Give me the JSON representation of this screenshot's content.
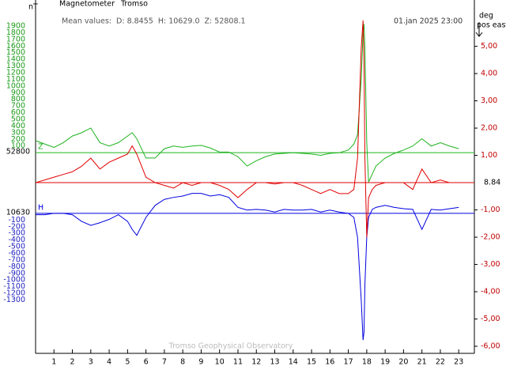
{
  "chart_data": {
    "type": "line",
    "header": {
      "unit_left": "nT",
      "instrument": "Magnetometer",
      "station": "Tromso",
      "mean_values": "Mean values:  D: 8.8455  H: 10629.0  Z: 52808.1",
      "timestamp": "01.jan 2025 23:00",
      "unit_right": "deg",
      "unit_right_sub": "pos east",
      "footer": "Tromso Geophysical Observatory"
    },
    "x": [
      0,
      0.5,
      1,
      1.5,
      2,
      2.5,
      3,
      3.5,
      4,
      4.5,
      5,
      5.25,
      5.5,
      6,
      6.5,
      7,
      7.5,
      8,
      8.5,
      9,
      9.5,
      10,
      10.5,
      11,
      11.5,
      12,
      12.5,
      13,
      13.5,
      14,
      14.5,
      15,
      15.5,
      16,
      16.5,
      17,
      17.3,
      17.5,
      17.7,
      17.8,
      17.85,
      17.9,
      18,
      18.1,
      18.3,
      18.5,
      19,
      19.5,
      20,
      20.5,
      21,
      21.5,
      22,
      22.5,
      23
    ],
    "xlim": [
      0,
      23.85
    ],
    "xticks": [
      1,
      2,
      3,
      4,
      5,
      6,
      7,
      8,
      9,
      10,
      11,
      12,
      13,
      14,
      15,
      16,
      17,
      18,
      19,
      20,
      21,
      22,
      23
    ],
    "axes": {
      "z": {
        "ylim": [
          -3010,
          2030
        ],
        "yticks": [
          1900,
          1800,
          1700,
          1600,
          1500,
          1400,
          1300,
          1200,
          1100,
          1000,
          900,
          800,
          700,
          600,
          500,
          400,
          300,
          200,
          100
        ],
        "color": "#1a9a1a",
        "baseline_label": "52800"
      },
      "h": {
        "ylim": [
          -2100,
          2940
        ],
        "yticks": [
          -100,
          -200,
          -300,
          -400,
          -500,
          -600,
          -700,
          -800,
          -900,
          -1000,
          -1100,
          -1200,
          -1300
        ],
        "color": "#2020c0",
        "baseline_label": "10630"
      },
      "d": {
        "ylim": [
          -6.26,
          6.06
        ],
        "yticks": [
          {
            "value": 5,
            "label": "5,00"
          },
          {
            "value": 4,
            "label": "4,00"
          },
          {
            "value": 3,
            "label": "3,00"
          },
          {
            "value": 2,
            "label": "2,00"
          },
          {
            "value": 1,
            "label": "1,00"
          },
          {
            "value": -1,
            "label": "-1,00"
          },
          {
            "value": -2,
            "label": "-2,00"
          },
          {
            "value": -3,
            "label": "-3,00"
          },
          {
            "value": -4,
            "label": "-4,00"
          },
          {
            "value": -5,
            "label": "-5,00"
          },
          {
            "value": -6,
            "label": "-6,00"
          }
        ],
        "color": "#c00000",
        "baseline_label": "8.84"
      }
    },
    "series": [
      {
        "name": "Z",
        "axis": "z",
        "color": "#1db31d",
        "values": [
          180,
          130,
          80,
          150,
          250,
          300,
          370,
          150,
          100,
          150,
          250,
          300,
          210,
          -80,
          -80,
          60,
          100,
          80,
          100,
          110,
          70,
          10,
          10,
          -60,
          -200,
          -120,
          -60,
          -20,
          -10,
          0,
          -10,
          -20,
          -40,
          -10,
          0,
          40,
          130,
          270,
          1100,
          1810,
          1930,
          1580,
          150,
          -440,
          -320,
          -200,
          -80,
          -10,
          40,
          100,
          210,
          100,
          150,
          100,
          60
        ]
      },
      {
        "name": "H",
        "axis": "h",
        "color": "#0000e0",
        "values": [
          -20,
          -20,
          0,
          0,
          -20,
          -120,
          -180,
          -140,
          -90,
          -20,
          -120,
          -240,
          -330,
          -60,
          120,
          210,
          240,
          260,
          300,
          300,
          260,
          280,
          240,
          90,
          50,
          60,
          50,
          20,
          60,
          50,
          50,
          60,
          20,
          50,
          20,
          0,
          -60,
          -360,
          -1300,
          -1900,
          -1780,
          -1070,
          -360,
          -60,
          60,
          90,
          120,
          90,
          70,
          60,
          -240,
          60,
          50,
          70,
          90
        ]
      },
      {
        "axis": "d",
        "color": "#e00000",
        "values": [
          0,
          0.1,
          0.2,
          0.3,
          0.4,
          0.6,
          0.9,
          0.5,
          0.75,
          0.9,
          1.05,
          1.35,
          1.05,
          0.2,
          0,
          -0.1,
          -0.2,
          0,
          -0.1,
          0,
          0,
          -0.1,
          -0.25,
          -0.55,
          -0.25,
          0,
          0,
          -0.05,
          0,
          0,
          -0.1,
          -0.25,
          -0.4,
          -0.25,
          -0.4,
          -0.4,
          -0.25,
          0.9,
          4.95,
          5.95,
          4.4,
          0.9,
          -2,
          -0.55,
          -0.25,
          -0.1,
          0,
          0,
          0,
          -0.25,
          0.5,
          0,
          0.1,
          0,
          0
        ]
      }
    ]
  }
}
